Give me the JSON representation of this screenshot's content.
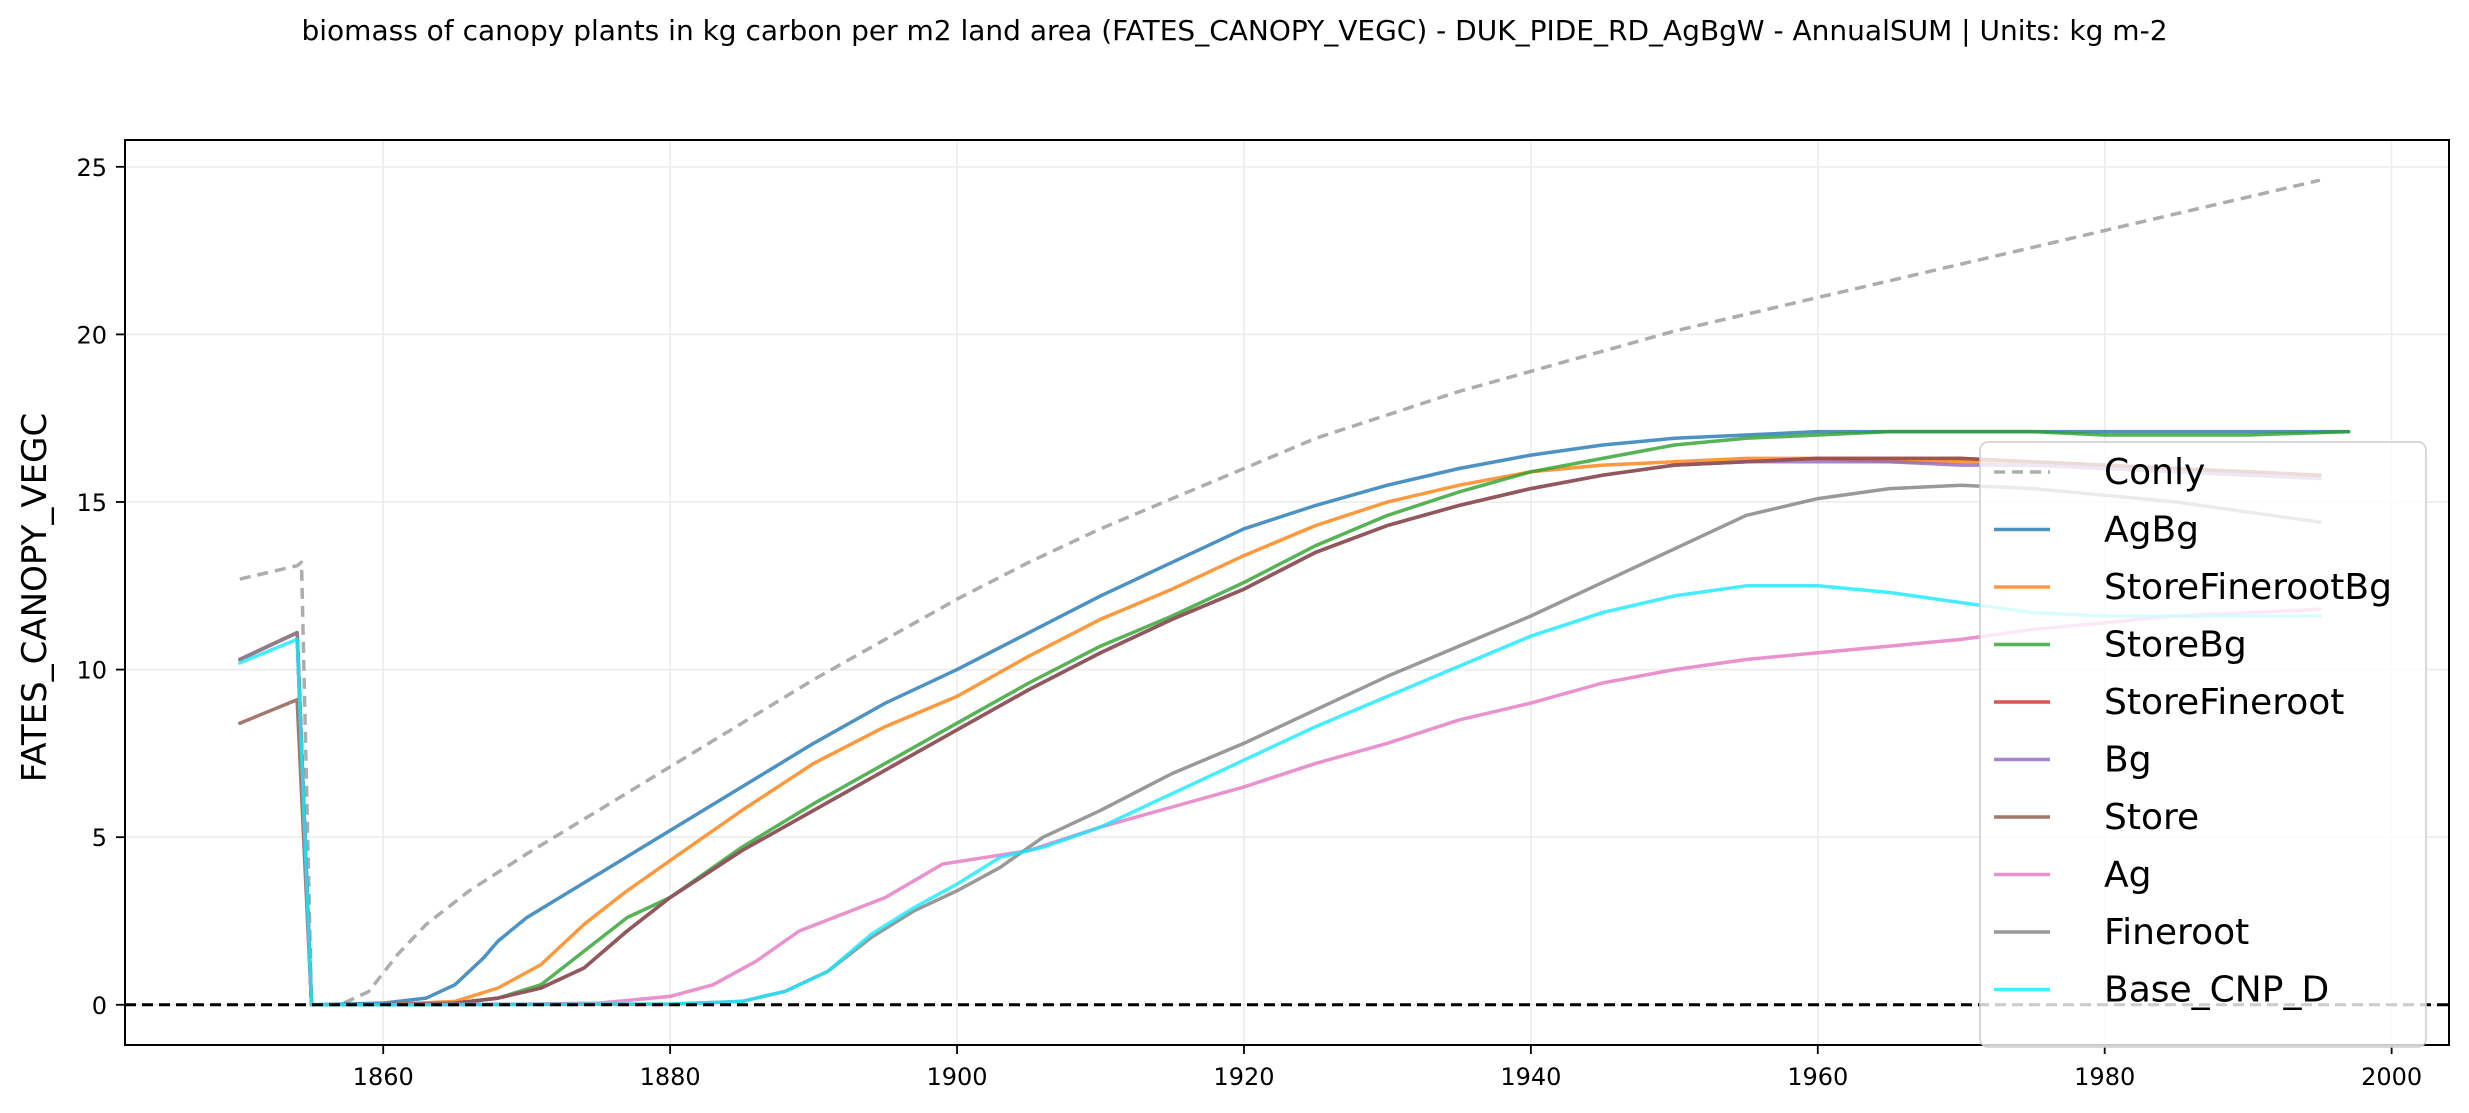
{
  "chart_data": {
    "type": "line",
    "title": "biomass of canopy plants in kg carbon per m2 land area (FATES_CANOPY_VEGC) - DUK_PIDE_RD_AgBgW - AnnualSUM | Units: kg m-2",
    "xlabel": "",
    "ylabel": "FATES_CANOPY_VEGC",
    "xlim": [
      1842,
      2004
    ],
    "ylim": [
      -1.2,
      25.8
    ],
    "xticks": [
      1860,
      1880,
      1900,
      1920,
      1940,
      1960,
      1980,
      2000
    ],
    "yticks": [
      0,
      5,
      10,
      15,
      20,
      25
    ],
    "grid": true,
    "legend_position": "lower-right",
    "zero_line": {
      "y": 0,
      "style": "dashed",
      "color": "#000000"
    },
    "series": [
      {
        "name": "Conly",
        "color": "#999999",
        "dashed": true,
        "x": [
          1850,
          1854,
          1854.3,
          1855,
          1857,
          1859,
          1861,
          1863,
          1866,
          1870,
          1875,
          1880,
          1885,
          1890,
          1895,
          1900,
          1905,
          1910,
          1915,
          1920,
          1925,
          1930,
          1935,
          1940,
          1945,
          1950,
          1955,
          1960,
          1965,
          1970,
          1975,
          1980,
          1985,
          1990,
          1995
        ],
        "y": [
          12.7,
          13.1,
          13.2,
          0,
          0,
          0.4,
          1.5,
          2.4,
          3.4,
          4.5,
          5.8,
          7.1,
          8.4,
          9.7,
          10.9,
          12.1,
          13.2,
          14.2,
          15.1,
          16,
          16.9,
          17.6,
          18.3,
          18.9,
          19.5,
          20.1,
          20.6,
          21.1,
          21.6,
          22.1,
          22.6,
          23.1,
          23.6,
          24.1,
          24.6
        ]
      },
      {
        "name": "AgBg",
        "color": "#1f77b4",
        "x": [
          1850,
          1854,
          1855,
          1860,
          1863,
          1865,
          1867,
          1868,
          1870,
          1875,
          1880,
          1885,
          1890,
          1895,
          1900,
          1905,
          1910,
          1915,
          1920,
          1925,
          1930,
          1935,
          1940,
          1945,
          1950,
          1955,
          1960,
          1965,
          1970,
          1975,
          1980,
          1985,
          1990,
          1997
        ],
        "y": [
          10.3,
          11.1,
          0,
          0.05,
          0.2,
          0.6,
          1.4,
          1.9,
          2.6,
          3.9,
          5.2,
          6.5,
          7.8,
          9,
          10,
          11.1,
          12.2,
          13.2,
          14.2,
          14.9,
          15.5,
          16,
          16.4,
          16.7,
          16.9,
          17,
          17.1,
          17.1,
          17.1,
          17.1,
          17.1,
          17.1,
          17.1,
          17.1
        ]
      },
      {
        "name": "StoreFinerootBg",
        "color": "#ff7f0e",
        "x": [
          1850,
          1854,
          1855,
          1860,
          1865,
          1868,
          1871,
          1874,
          1877,
          1880,
          1885,
          1890,
          1895,
          1900,
          1905,
          1910,
          1915,
          1920,
          1925,
          1930,
          1935,
          1940,
          1945,
          1950,
          1955,
          1960,
          1965,
          1970,
          1975,
          1980,
          1985,
          1990,
          1995
        ],
        "y": [
          10.3,
          11.1,
          0,
          0,
          0.1,
          0.5,
          1.2,
          2.4,
          3.4,
          4.3,
          5.8,
          7.2,
          8.3,
          9.2,
          10.4,
          11.5,
          12.4,
          13.4,
          14.3,
          15,
          15.5,
          15.9,
          16.1,
          16.2,
          16.3,
          16.3,
          16.2,
          16.2,
          16.2,
          16.1,
          16,
          15.9,
          15.8
        ]
      },
      {
        "name": "StoreBg",
        "color": "#2ca02c",
        "x": [
          1850,
          1854,
          1855,
          1860,
          1865,
          1868,
          1871,
          1874,
          1877,
          1880,
          1885,
          1890,
          1895,
          1900,
          1905,
          1910,
          1915,
          1920,
          1925,
          1930,
          1935,
          1940,
          1945,
          1950,
          1955,
          1960,
          1965,
          1970,
          1975,
          1980,
          1985,
          1990,
          1997
        ],
        "y": [
          10.3,
          11.1,
          0,
          0,
          0.05,
          0.2,
          0.6,
          1.6,
          2.6,
          3.2,
          4.7,
          6,
          7.2,
          8.4,
          9.6,
          10.7,
          11.6,
          12.6,
          13.7,
          14.6,
          15.3,
          15.9,
          16.3,
          16.7,
          16.9,
          17,
          17.1,
          17.1,
          17.1,
          17,
          17,
          17,
          17.1
        ]
      },
      {
        "name": "StoreFineroot",
        "color": "#d62728",
        "x": [
          1850,
          1854,
          1855,
          1860,
          1865,
          1868,
          1871,
          1874,
          1877,
          1880,
          1885,
          1890,
          1895,
          1900,
          1905,
          1910,
          1915,
          1920,
          1925,
          1930,
          1935,
          1940,
          1945,
          1950,
          1955,
          1960,
          1965,
          1970,
          1975,
          1980,
          1985,
          1990,
          1995
        ],
        "y": [
          10.3,
          11.1,
          0,
          0,
          0.05,
          0.2,
          0.5,
          1.1,
          2.2,
          3.2,
          4.6,
          5.8,
          7,
          8.2,
          9.4,
          10.5,
          11.5,
          12.4,
          13.5,
          14.3,
          14.9,
          15.4,
          15.8,
          16.1,
          16.2,
          16.3,
          16.3,
          16.3,
          16.2,
          16.1,
          16,
          15.9,
          15.8
        ]
      },
      {
        "name": "Bg",
        "color": "#9467bd",
        "x": [
          1850,
          1854,
          1855,
          1860,
          1865,
          1868,
          1871,
          1874,
          1877,
          1880,
          1885,
          1890,
          1895,
          1900,
          1905,
          1910,
          1915,
          1920,
          1925,
          1930,
          1935,
          1940,
          1945,
          1950,
          1955,
          1960,
          1965,
          1970,
          1975,
          1980,
          1985,
          1990,
          1995
        ],
        "y": [
          10.3,
          11.1,
          0,
          0,
          0.05,
          0.2,
          0.5,
          1.1,
          2.2,
          3.2,
          4.6,
          5.8,
          7,
          8.2,
          9.4,
          10.5,
          11.5,
          12.4,
          13.5,
          14.3,
          14.9,
          15.4,
          15.8,
          16.1,
          16.2,
          16.2,
          16.2,
          16.1,
          16.1,
          16,
          15.9,
          15.8,
          15.7
        ]
      },
      {
        "name": "Store",
        "color": "#8c564b",
        "x": [
          1850,
          1854,
          1855,
          1860,
          1865,
          1868,
          1871,
          1874,
          1877,
          1880,
          1885,
          1890,
          1895,
          1900,
          1905,
          1910,
          1915,
          1920,
          1925,
          1930,
          1935,
          1940,
          1945,
          1950,
          1955,
          1960,
          1965,
          1970,
          1975,
          1980,
          1985,
          1990,
          1995
        ],
        "y": [
          8.4,
          9.1,
          0,
          0,
          0.05,
          0.2,
          0.5,
          1.1,
          2.2,
          3.2,
          4.6,
          5.8,
          7,
          8.2,
          9.4,
          10.5,
          11.5,
          12.4,
          13.5,
          14.3,
          14.9,
          15.4,
          15.8,
          16.1,
          16.2,
          16.3,
          16.3,
          16.3,
          16.2,
          16.1,
          16,
          15.9,
          15.8
        ]
      },
      {
        "name": "Ag",
        "color": "#e377c2",
        "x": [
          1850,
          1854,
          1855,
          1860,
          1870,
          1875,
          1880,
          1883,
          1886,
          1889,
          1892,
          1895,
          1897,
          1899,
          1902,
          1905,
          1910,
          1915,
          1920,
          1925,
          1930,
          1935,
          1940,
          1945,
          1950,
          1955,
          1960,
          1965,
          1970,
          1975,
          1980,
          1985,
          1990,
          1995
        ],
        "y": [
          10.3,
          11.1,
          0,
          0,
          0.02,
          0.05,
          0.25,
          0.6,
          1.3,
          2.2,
          2.7,
          3.2,
          3.7,
          4.2,
          4.4,
          4.6,
          5.3,
          5.9,
          6.5,
          7.2,
          7.8,
          8.5,
          9,
          9.6,
          10,
          10.3,
          10.5,
          10.7,
          10.9,
          11.2,
          11.4,
          11.6,
          11.7,
          11.8
        ]
      },
      {
        "name": "Fineroot",
        "color": "#7f7f7f",
        "x": [
          1850,
          1854,
          1855,
          1860,
          1880,
          1885,
          1888,
          1891,
          1894,
          1897,
          1900,
          1903,
          1906,
          1910,
          1915,
          1920,
          1925,
          1930,
          1935,
          1940,
          1945,
          1950,
          1955,
          1960,
          1965,
          1970,
          1975,
          1980,
          1985,
          1990,
          1995
        ],
        "y": [
          10.3,
          11.1,
          0,
          0,
          0.02,
          0.1,
          0.4,
          1,
          2,
          2.8,
          3.4,
          4.1,
          5,
          5.8,
          6.9,
          7.8,
          8.8,
          9.8,
          10.7,
          11.6,
          12.6,
          13.6,
          14.6,
          15.1,
          15.4,
          15.5,
          15.4,
          15.2,
          15,
          14.7,
          14.4
        ]
      },
      {
        "name": "Base_CNP_D",
        "color": "#17e9ff",
        "x": [
          1850,
          1854,
          1855,
          1860,
          1880,
          1885,
          1888,
          1891,
          1894,
          1897,
          1900,
          1903,
          1906,
          1910,
          1915,
          1920,
          1925,
          1930,
          1935,
          1940,
          1945,
          1950,
          1955,
          1960,
          1965,
          1970,
          1975,
          1980,
          1985,
          1990,
          1995
        ],
        "y": [
          10.2,
          10.9,
          0,
          0,
          0.02,
          0.1,
          0.4,
          1,
          2.1,
          2.9,
          3.6,
          4.4,
          4.7,
          5.3,
          6.3,
          7.3,
          8.3,
          9.2,
          10.1,
          11,
          11.7,
          12.2,
          12.5,
          12.5,
          12.3,
          12,
          11.7,
          11.6,
          11.6,
          11.6,
          11.6
        ]
      }
    ]
  }
}
